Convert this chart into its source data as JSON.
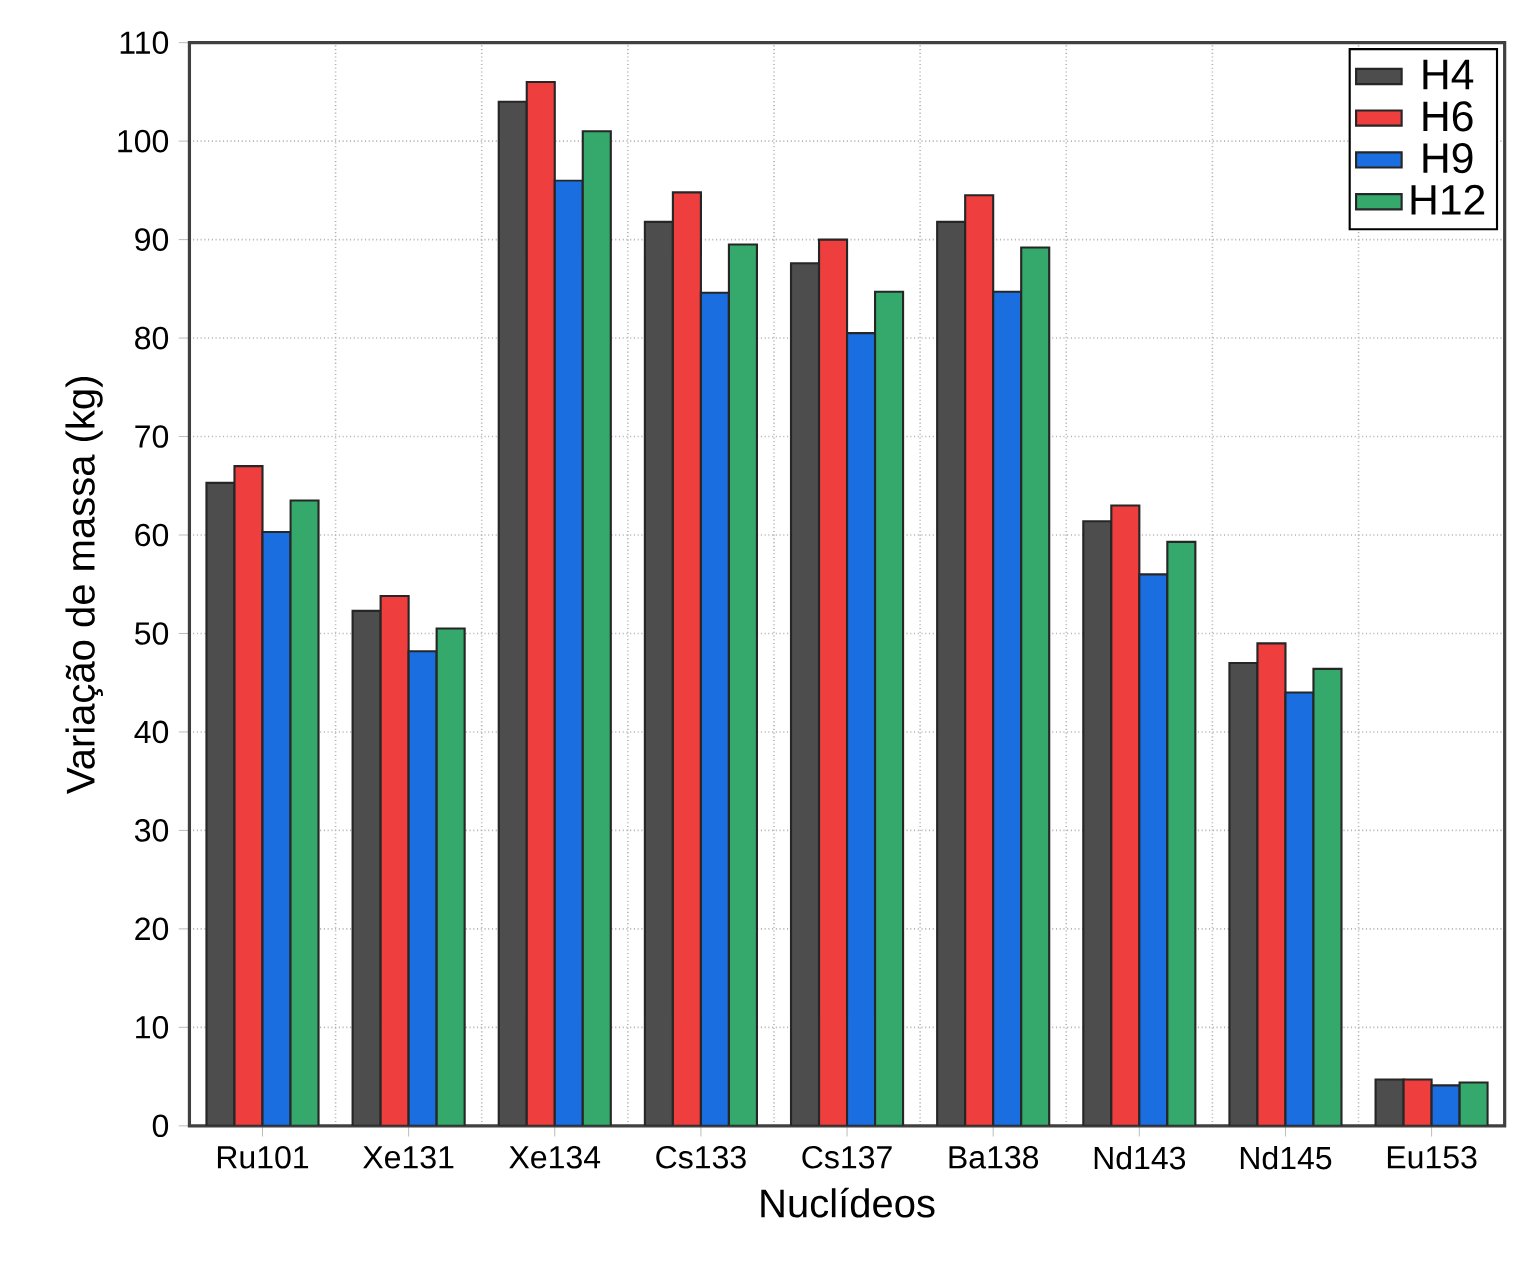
{
  "chart_data": {
    "type": "bar",
    "xlabel": "Nuclídeos",
    "ylabel": "Variação de massa (kg)",
    "categories": [
      "Ru101",
      "Xe131",
      "Xe134",
      "Cs133",
      "Cs137",
      "Ba138",
      "Nd143",
      "Nd145",
      "Eu153"
    ],
    "series": [
      {
        "name": "H4",
        "color": "#4d4d4d",
        "values": [
          65.3,
          52.3,
          104,
          91.8,
          87.6,
          91.8,
          61.4,
          47,
          4.7
        ]
      },
      {
        "name": "H6",
        "color": "#ef3e3e",
        "values": [
          67,
          53.8,
          106,
          94.8,
          90,
          94.5,
          63,
          49,
          4.7
        ]
      },
      {
        "name": "H9",
        "color": "#1a6ee0",
        "values": [
          60.3,
          48.2,
          96,
          84.6,
          80.5,
          84.7,
          56,
          44,
          4.1
        ]
      },
      {
        "name": "H12",
        "color": "#35a96b",
        "values": [
          63.5,
          50.5,
          101,
          89.5,
          84.7,
          89.2,
          59.3,
          46.4,
          4.4
        ]
      }
    ],
    "ylim": [
      0,
      110
    ],
    "yticks": [
      0,
      10,
      20,
      30,
      40,
      50,
      60,
      70,
      80,
      90,
      100,
      110
    ],
    "grid": true,
    "legend": "top right"
  }
}
